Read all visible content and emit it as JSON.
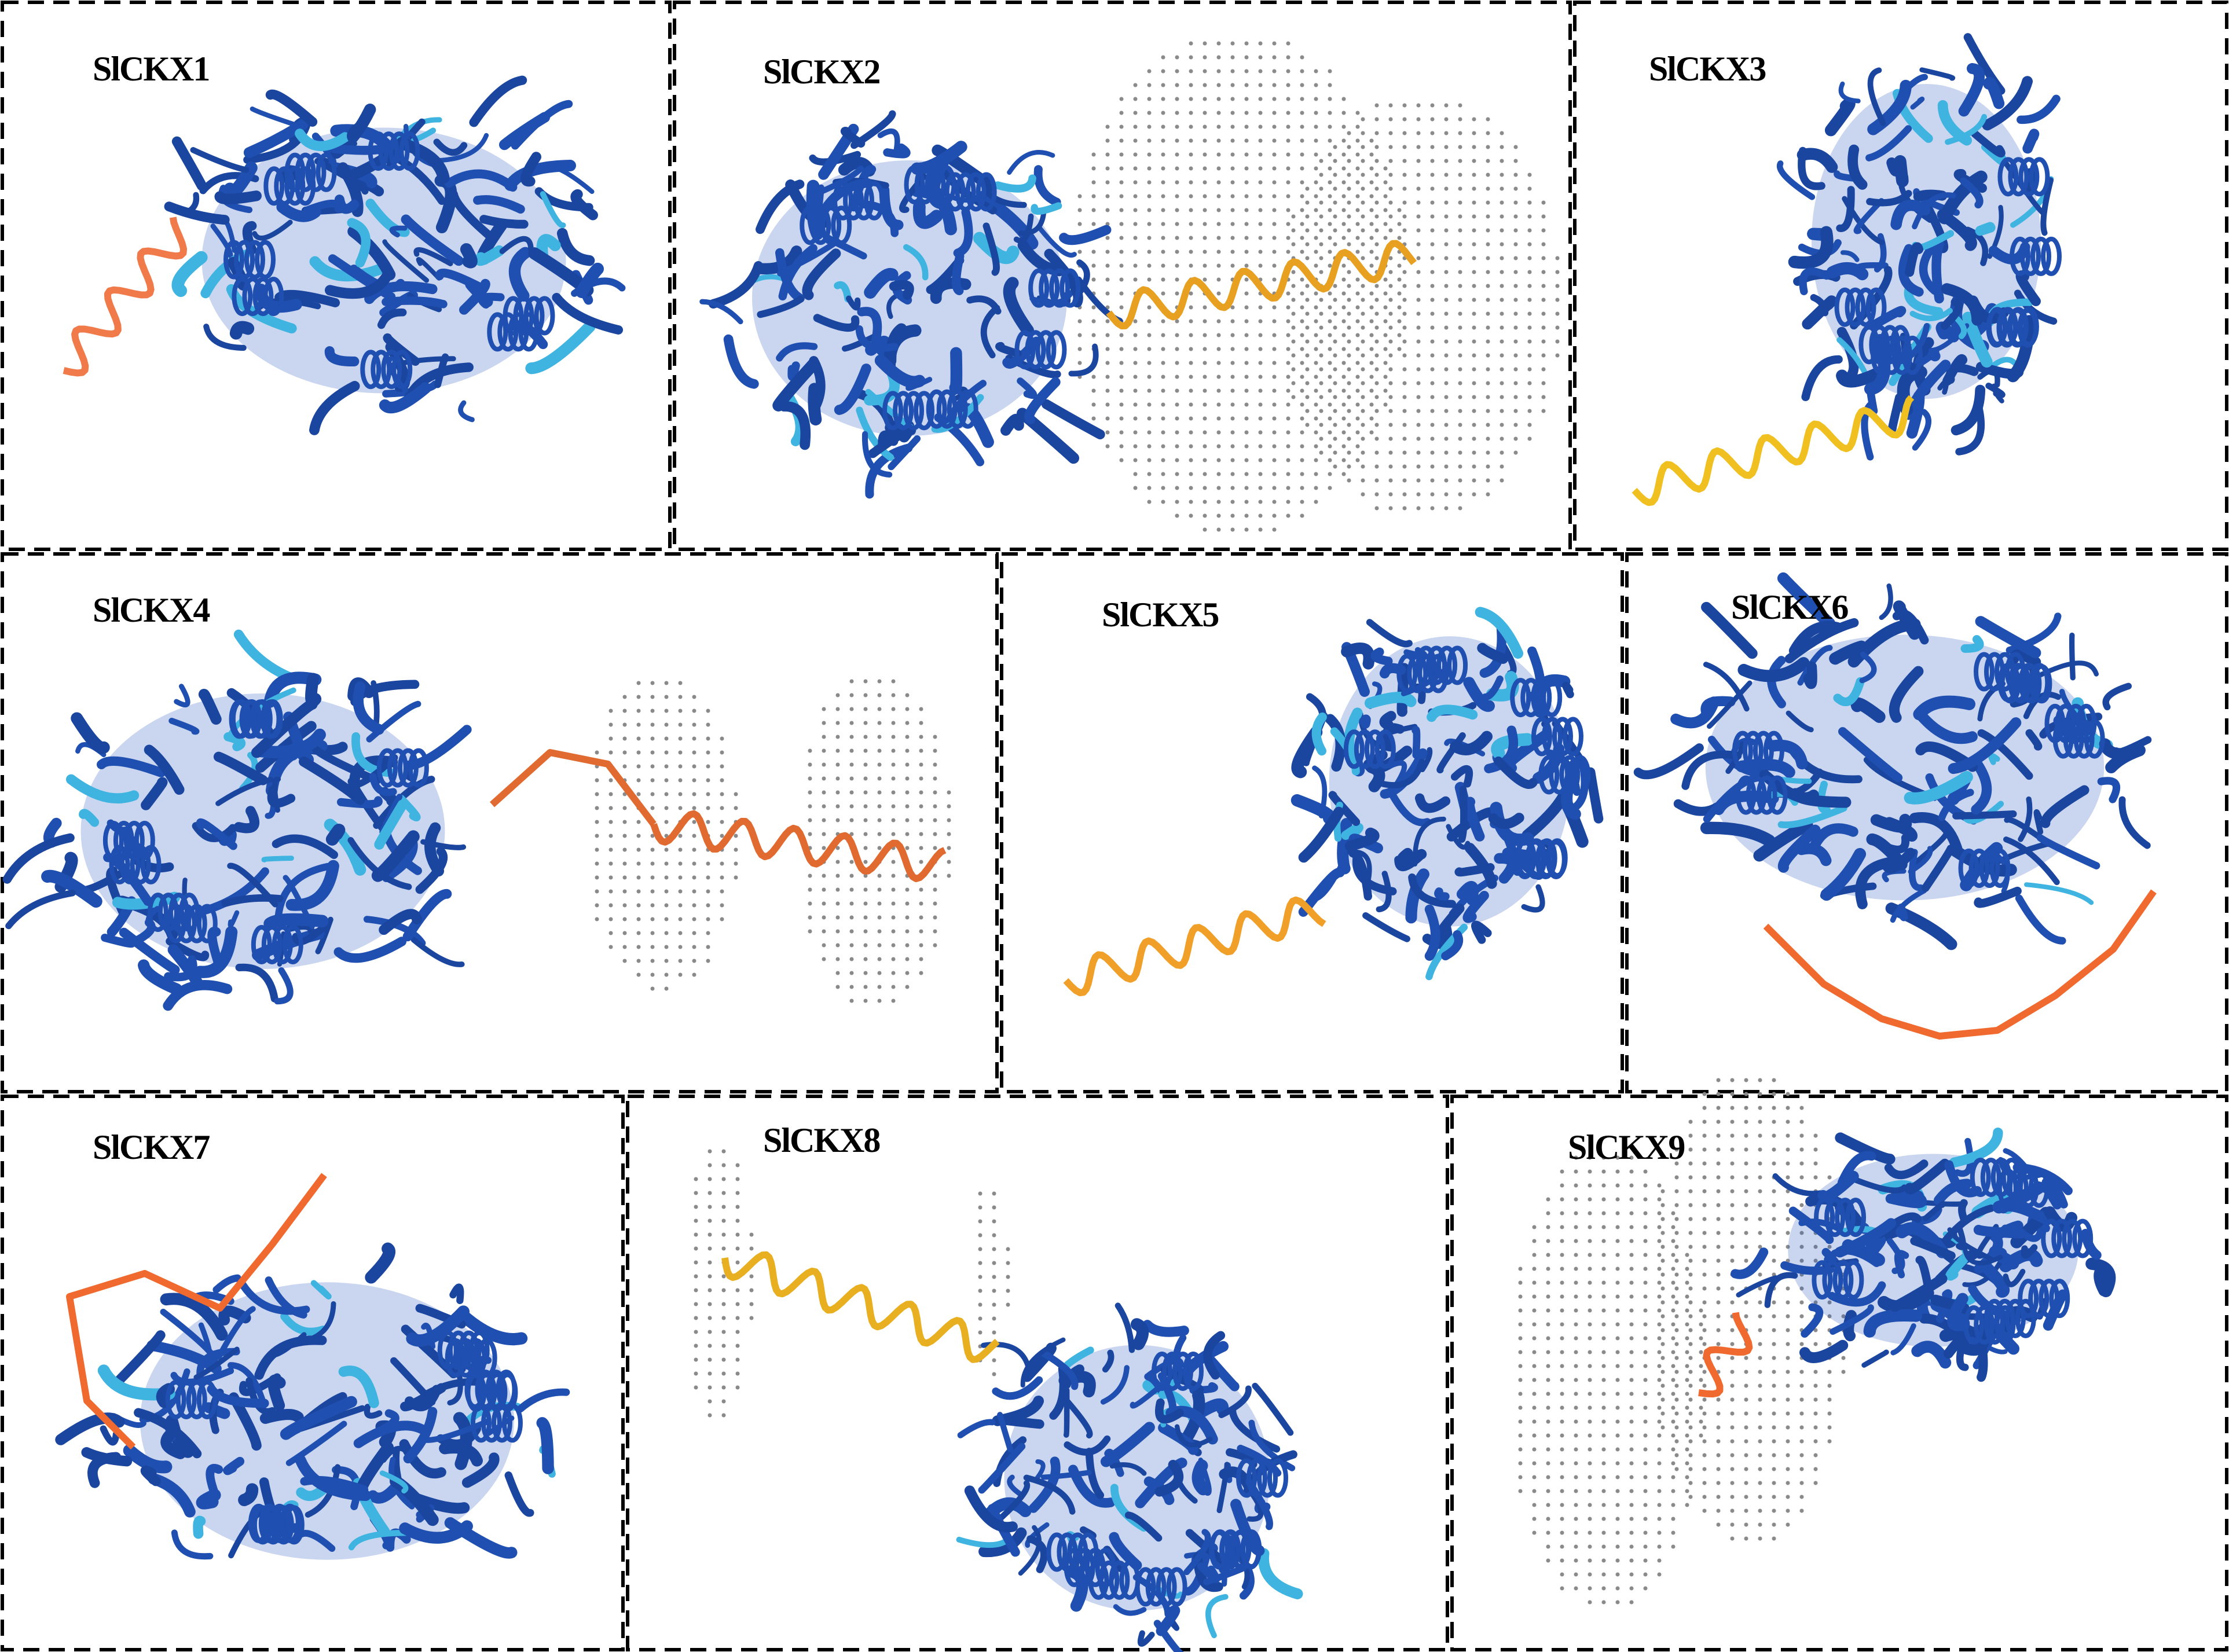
{
  "panels": [
    {
      "label": "SlCKX1",
      "tail_color": "#f07a4a"
    },
    {
      "label": "SlCKX2",
      "tail_color": "#e8a020",
      "membrane": true
    },
    {
      "label": "SlCKX3",
      "tail_color": "#f0c020"
    },
    {
      "label": "SlCKX4",
      "tail_color": "#e06a30",
      "membrane": true
    },
    {
      "label": "SlCKX5",
      "tail_color": "#f0a028"
    },
    {
      "label": "SlCKX6",
      "tail_color": "#f06a30"
    },
    {
      "label": "SlCKX7",
      "tail_color": "#f06a30"
    },
    {
      "label": "SlCKX8",
      "tail_color": "#e8b020",
      "membrane": true
    },
    {
      "label": "SlCKX9",
      "tail_color": "#f06a30",
      "membrane": true
    }
  ],
  "colors": {
    "very_high": "#1f4fb0",
    "confident": "#40b4e0",
    "low": "#f5c518",
    "very_low": "#f07a4a",
    "membrane_dots": "#8a8a8a",
    "border": "#000000"
  }
}
